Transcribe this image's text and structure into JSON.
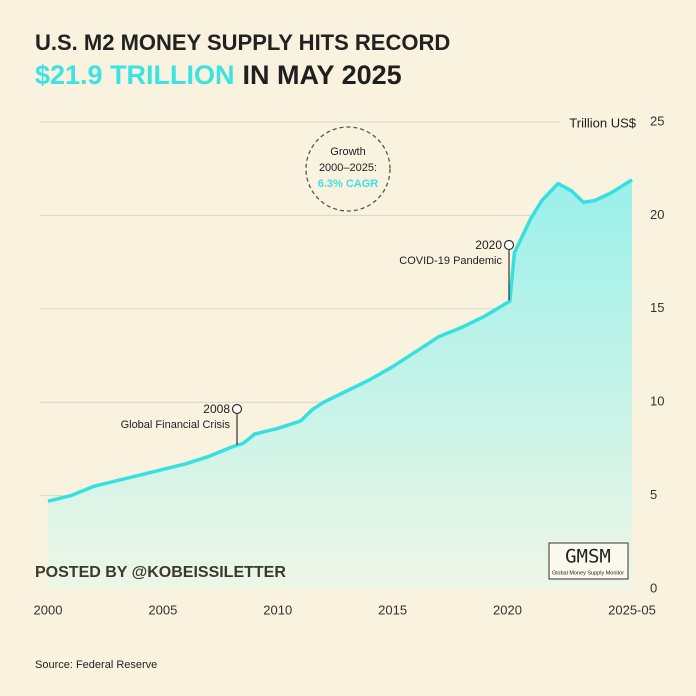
{
  "chart_data": {
    "type": "area",
    "title": "U.S. M2 MONEY SUPPLY HITS RECORD",
    "subtitle_highlight": "$21.9 TRILLION",
    "subtitle_rest": "IN MAY 2025",
    "y_axis_label": "Trillion US$",
    "x": [
      2000,
      2001,
      2002,
      2003,
      2004,
      2005,
      2006,
      2007,
      2008,
      2008.5,
      2009,
      2010,
      2011,
      2011.5,
      2012,
      2013,
      2014,
      2015,
      2016,
      2017,
      2018,
      2019,
      2020.1,
      2020.3,
      2021,
      2021.5,
      2022.2,
      2022.8,
      2023.3,
      2023.8,
      2024.5,
      2025.42
    ],
    "values": [
      4.7,
      5.0,
      5.5,
      5.8,
      6.1,
      6.4,
      6.7,
      7.1,
      7.6,
      7.8,
      8.3,
      8.6,
      9.0,
      9.6,
      10.0,
      10.6,
      11.2,
      11.9,
      12.7,
      13.5,
      14.0,
      14.6,
      15.4,
      18.0,
      19.8,
      20.8,
      21.7,
      21.3,
      20.7,
      20.8,
      21.2,
      21.9
    ],
    "color": "#36e0e0",
    "xlim": [
      2000,
      2025.42
    ],
    "xticks": [
      2000,
      2005,
      2010,
      2015,
      2020,
      {
        "value": 2025.42,
        "label": "2025-05"
      }
    ],
    "ylim": [
      0,
      25
    ],
    "yticks": [
      0,
      5,
      10,
      15,
      20,
      25
    ],
    "grid": true,
    "annotations": [
      {
        "label": "2008",
        "text": "Global Financial Crisis"
      },
      {
        "label": "2020",
        "text": "COVID-19 Pandemic"
      }
    ],
    "callout": [
      "Growth",
      "2000–2025:",
      "6.3% CAGR"
    ],
    "credit": "POSTED BY @KOBEISSILETTER",
    "logo": "GMSM",
    "logo_subtitle": "Global Money Supply Monitor",
    "source": "Source: Federal Reserve"
  }
}
